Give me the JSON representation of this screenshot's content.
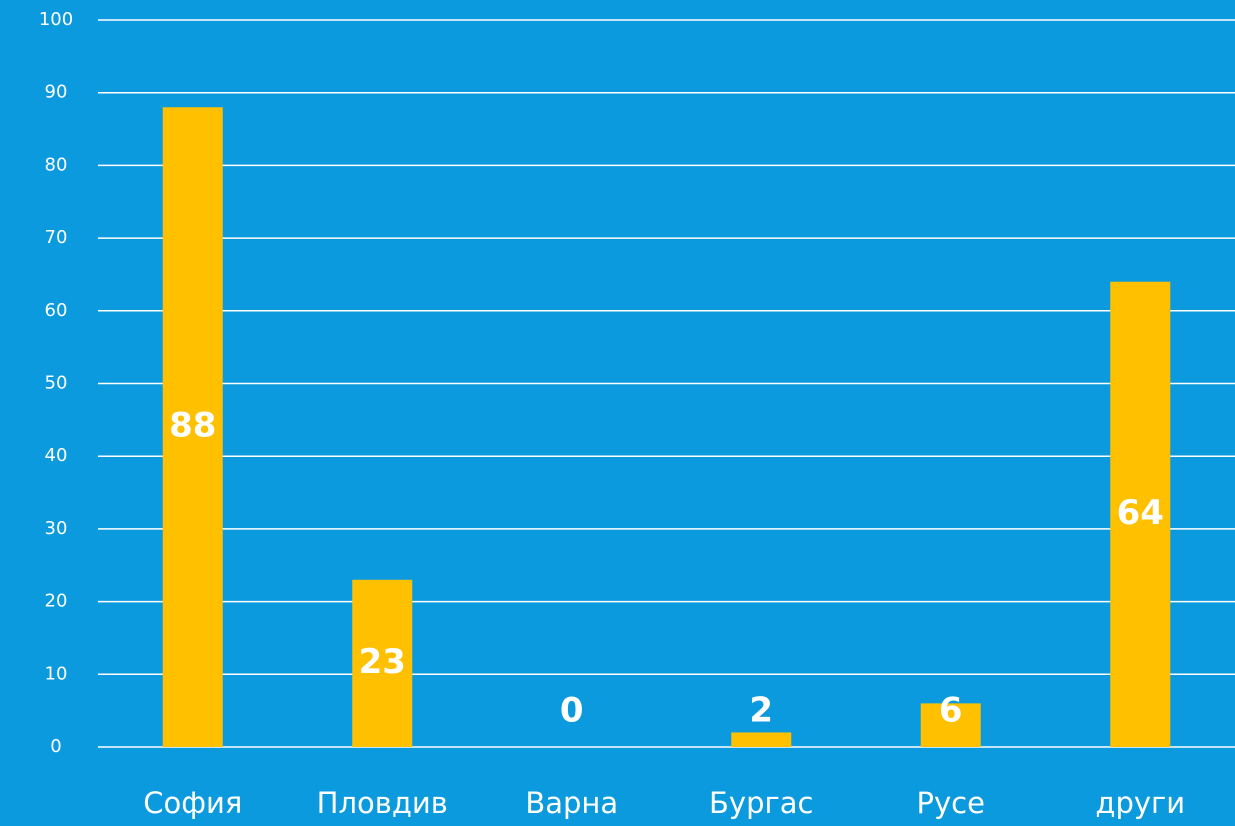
{
  "chart_data": {
    "type": "bar",
    "categories": [
      "София",
      "Пловдив",
      "Варна",
      "Бургас",
      "Русе",
      "други"
    ],
    "values": [
      88,
      23,
      0,
      2,
      6,
      64
    ],
    "color": "#ffc000",
    "ylim": [
      0,
      100
    ],
    "yticks": [
      0,
      10,
      20,
      30,
      40,
      50,
      60,
      70,
      80,
      90,
      100
    ],
    "grid": true
  }
}
